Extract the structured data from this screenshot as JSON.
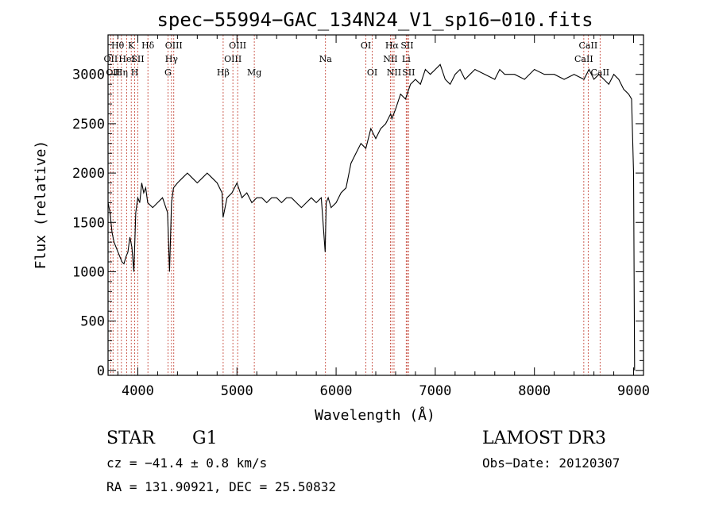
{
  "chart_data": {
    "type": "line",
    "title": "spec−55994−GAC_134N24_V1_sp16−010.fits",
    "xlabel": "Wavelength (Å)",
    "ylabel": "Flux (relative)",
    "xlim": [
      3700,
      9100
    ],
    "ylim": [
      -50,
      3400
    ],
    "xticks": [
      4000,
      5000,
      6000,
      7000,
      8000,
      9000
    ],
    "yticks": [
      0,
      500,
      1000,
      1500,
      2000,
      2500,
      3000
    ],
    "series": [
      {
        "name": "flux",
        "x": [
          3700,
          3720,
          3740,
          3760,
          3780,
          3800,
          3820,
          3840,
          3860,
          3880,
          3900,
          3920,
          3940,
          3960,
          3980,
          4000,
          4020,
          4040,
          4060,
          4080,
          4100,
          4150,
          4200,
          4250,
          4300,
          4320,
          4340,
          4360,
          4400,
          4450,
          4500,
          4550,
          4600,
          4650,
          4700,
          4750,
          4800,
          4850,
          4860,
          4900,
          4950,
          5000,
          5050,
          5100,
          5150,
          5200,
          5250,
          5300,
          5350,
          5400,
          5450,
          5500,
          5550,
          5600,
          5650,
          5700,
          5750,
          5800,
          5850,
          5890,
          5900,
          5920,
          5950,
          6000,
          6050,
          6100,
          6150,
          6200,
          6250,
          6300,
          6350,
          6400,
          6450,
          6500,
          6550,
          6563,
          6600,
          6650,
          6700,
          6750,
          6800,
          6850,
          6900,
          6950,
          7000,
          7050,
          7100,
          7150,
          7200,
          7250,
          7300,
          7350,
          7400,
          7500,
          7600,
          7650,
          7700,
          7800,
          7900,
          8000,
          8100,
          8200,
          8300,
          8400,
          8500,
          8550,
          8600,
          8650,
          8700,
          8750,
          8800,
          8850,
          8900,
          8950,
          8980,
          9000,
          9010
        ],
        "values": [
          1700,
          1600,
          1400,
          1300,
          1250,
          1200,
          1150,
          1100,
          1080,
          1150,
          1200,
          1350,
          1250,
          1000,
          1600,
          1750,
          1700,
          1900,
          1800,
          1850,
          1700,
          1650,
          1700,
          1750,
          1600,
          1000,
          1700,
          1850,
          1900,
          1950,
          2000,
          1950,
          1900,
          1950,
          2000,
          1950,
          1900,
          1800,
          1550,
          1750,
          1800,
          1900,
          1750,
          1800,
          1700,
          1750,
          1750,
          1700,
          1750,
          1750,
          1700,
          1750,
          1750,
          1700,
          1650,
          1700,
          1750,
          1700,
          1750,
          1200,
          1700,
          1750,
          1650,
          1700,
          1800,
          1850,
          2100,
          2200,
          2300,
          2250,
          2450,
          2350,
          2450,
          2500,
          2600,
          2550,
          2650,
          2800,
          2750,
          2900,
          2950,
          2900,
          3050,
          3000,
          3050,
          3100,
          2950,
          2900,
          3000,
          3050,
          2950,
          3000,
          3050,
          3000,
          2950,
          3050,
          3000,
          3000,
          2950,
          3050,
          3000,
          3000,
          2950,
          3000,
          2950,
          3050,
          2950,
          3000,
          2950,
          2900,
          3000,
          2950,
          2850,
          2800,
          2750,
          2000,
          0
        ]
      }
    ],
    "lines": [
      {
        "wave": 3727,
        "label": "OII",
        "row": 2
      },
      {
        "wave": 3750,
        "label": "OII",
        "row": 3
      },
      {
        "wave": 3797,
        "label": "Hθ",
        "row": 1
      },
      {
        "wave": 3835,
        "label": "Hη",
        "row": 3
      },
      {
        "wave": 3889,
        "label": "HeI",
        "row": 2
      },
      {
        "wave": 3934,
        "label": "K",
        "row": 1
      },
      {
        "wave": 3969,
        "label": "H",
        "row": 3
      },
      {
        "wave": 4000,
        "label": "SII",
        "row": 2
      },
      {
        "wave": 4102,
        "label": "Hδ",
        "row": 1
      },
      {
        "wave": 4304,
        "label": "G",
        "row": 3
      },
      {
        "wave": 4340,
        "label": "Hγ",
        "row": 2
      },
      {
        "wave": 4363,
        "label": "OIII",
        "row": 1
      },
      {
        "wave": 4861,
        "label": "Hβ",
        "row": 3
      },
      {
        "wave": 4959,
        "label": "OIII",
        "row": 2
      },
      {
        "wave": 5007,
        "label": "OIII",
        "row": 1
      },
      {
        "wave": 5175,
        "label": "Mg",
        "row": 3
      },
      {
        "wave": 5893,
        "label": "Na",
        "row": 2
      },
      {
        "wave": 6300,
        "label": "OI",
        "row": 1
      },
      {
        "wave": 6364,
        "label": "OI",
        "row": 3
      },
      {
        "wave": 6548,
        "label": "NII",
        "row": 2
      },
      {
        "wave": 6563,
        "label": "Hα",
        "row": 1
      },
      {
        "wave": 6584,
        "label": "NII",
        "row": 3
      },
      {
        "wave": 6707,
        "label": "Li",
        "row": 2
      },
      {
        "wave": 6716,
        "label": "SII",
        "row": 1
      },
      {
        "wave": 6731,
        "label": "SII",
        "row": 3
      },
      {
        "wave": 8498,
        "label": "CaII",
        "row": 2
      },
      {
        "wave": 8542,
        "label": "CaII",
        "row": 1
      },
      {
        "wave": 8662,
        "label": "CaII",
        "row": 3
      }
    ]
  },
  "info": {
    "object_class": "STAR",
    "subclass": "G1",
    "survey": "LAMOST DR3",
    "cz": "cz = −41.4 ± 0.8 km/s",
    "obs_date": "Obs−Date: 20120307",
    "radec": "RA = 131.90921, DEC =  25.50832"
  }
}
